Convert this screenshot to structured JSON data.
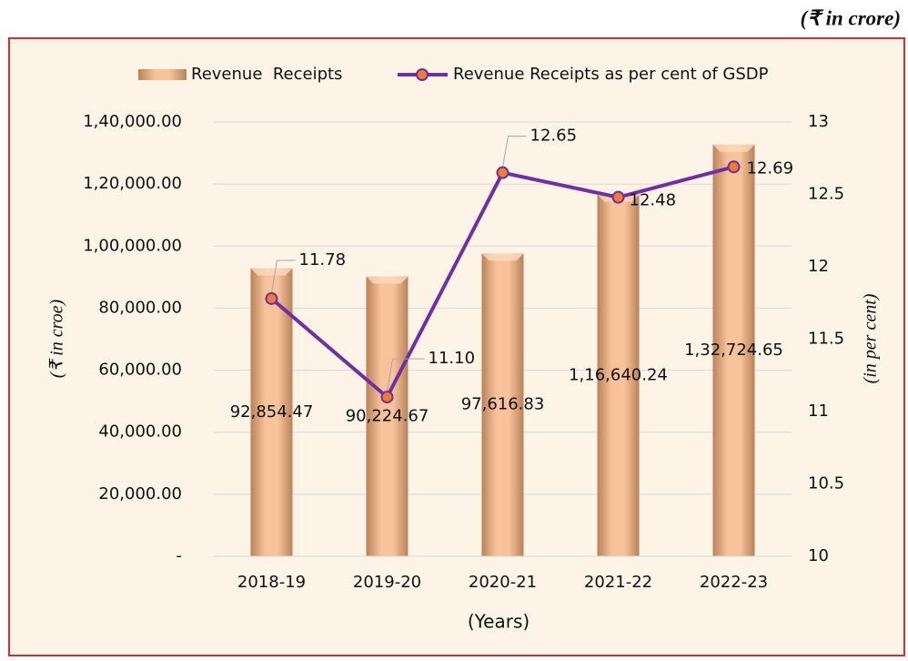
{
  "chart_data": {
    "type": "bar_line",
    "unit_note": "(₹ in crore)",
    "categories": [
      "2018-19",
      "2019-20",
      "2020-21",
      "2021-22",
      "2022-23"
    ],
    "xlabel": "(Years)",
    "ylabel": "(₹ in croe)",
    "y2label": "(in per cent)",
    "series": [
      {
        "name": "Revenue  Receipts",
        "color": "#f4b183",
        "values": [
          92854.47,
          90224.67,
          97616.83,
          116640.24,
          132724.65
        ],
        "value_labels": [
          "92,854.47",
          "90,224.67",
          "97,616.83",
          "1,16,640.24",
          "1,32,724.65"
        ]
      },
      {
        "name": "Revenue Receipts as per cent of GSDP",
        "color": "#7030a0",
        "marker_color": "#ed7d31",
        "axis": "y2",
        "values": [
          11.78,
          11.1,
          12.65,
          12.48,
          12.69
        ],
        "value_labels": [
          "11.78",
          "11.10",
          "12.65",
          "12.48",
          "12.69"
        ]
      }
    ],
    "ylim": [
      0,
      140000
    ],
    "yticks": [
      {
        "value": 0,
        "label": "-"
      },
      {
        "value": 20000,
        "label": "20,000.00"
      },
      {
        "value": 40000,
        "label": "40,000.00"
      },
      {
        "value": 60000,
        "label": "60,000.00"
      },
      {
        "value": 80000,
        "label": "80,000.00"
      },
      {
        "value": 100000,
        "label": "1,00,000.00"
      },
      {
        "value": 120000,
        "label": "1,20,000.00"
      },
      {
        "value": 140000,
        "label": "1,40,000.00"
      }
    ],
    "y2lim": [
      10,
      13
    ],
    "y2ticks": [
      10,
      10.5,
      11,
      11.5,
      12,
      12.5,
      13
    ],
    "grid": true,
    "legend": "top"
  }
}
